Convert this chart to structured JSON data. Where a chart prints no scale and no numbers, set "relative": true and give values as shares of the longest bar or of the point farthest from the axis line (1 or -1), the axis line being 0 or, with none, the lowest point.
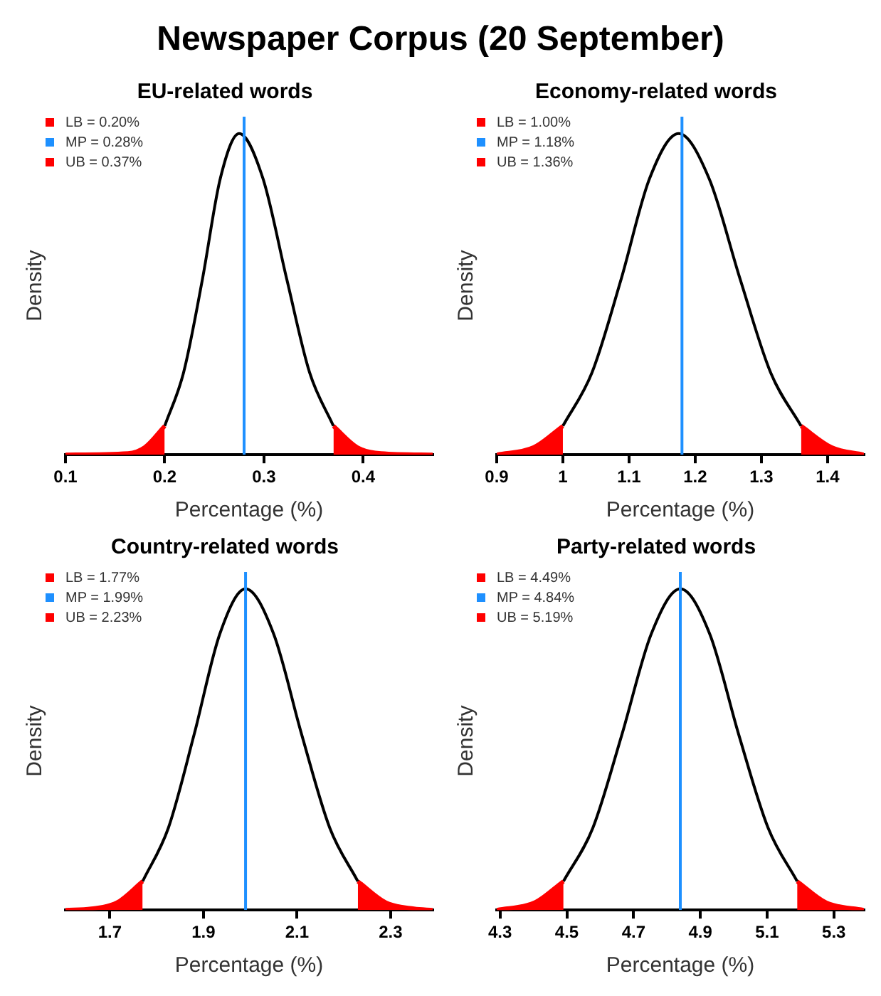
{
  "chart_data": [
    {
      "type": "other",
      "title": "Newspaper Corpus (20 September)"
    },
    {
      "type": "line",
      "title": "EU-related words",
      "xlabel": "Percentage (%)",
      "ylabel": "Density",
      "relative": true,
      "legend": "top left",
      "xlim": [
        0.1,
        0.47
      ],
      "xticks": [
        0.1,
        0.2,
        0.3,
        0.4
      ],
      "series": [
        {
          "name": "LB = 0.20%",
          "type": "area",
          "color": "#ff0000",
          "x": [
            0.1,
            0.163,
            0.18,
            0.2
          ],
          "values": [
            0,
            0.004,
            0.022,
            0.085
          ]
        },
        {
          "name": "MP = 0.28%",
          "type": "line",
          "color": "#1e90ff",
          "x": [
            0.28,
            0.28
          ],
          "values": [
            0,
            1
          ]
        },
        {
          "type": "line",
          "color": "#000000",
          "x": [
            0.2,
            0.219,
            0.238,
            0.256,
            0.275,
            0.299,
            0.323,
            0.346,
            0.37
          ],
          "values": [
            0.085,
            0.243,
            0.519,
            0.817,
            0.95,
            0.817,
            0.519,
            0.243,
            0.085
          ]
        },
        {
          "name": "UB = 0.37%",
          "type": "area",
          "color": "#ff0000",
          "x": [
            0.37,
            0.394,
            0.418,
            0.47
          ],
          "values": [
            0.085,
            0.022,
            0.004,
            0
          ]
        }
      ]
    },
    {
      "type": "line",
      "title": "Economy-related words",
      "xlabel": "Percentage (%)",
      "ylabel": "Density",
      "relative": true,
      "legend": "top left",
      "xlim": [
        0.9,
        1.455
      ],
      "xticks": [
        0.9,
        1,
        1.1,
        1.2,
        1.3,
        1.4
      ],
      "series": [
        {
          "name": "LB = 1.00%",
          "type": "area",
          "color": "#ff0000",
          "x": [
            0.9,
            0.956,
            1.0
          ],
          "values": [
            0,
            0.022,
            0.085
          ]
        },
        {
          "name": "MP = 1.18%",
          "type": "line",
          "color": "#1e90ff",
          "x": [
            1.18,
            1.18
          ],
          "values": [
            0,
            1
          ]
        },
        {
          "type": "line",
          "color": "#000000",
          "x": [
            1.0,
            1.044,
            1.088,
            1.131,
            1.175,
            1.221,
            1.268,
            1.314,
            1.36
          ],
          "values": [
            0.085,
            0.243,
            0.519,
            0.817,
            0.95,
            0.817,
            0.519,
            0.243,
            0.085
          ]
        },
        {
          "name": "UB = 1.36%",
          "type": "area",
          "color": "#ff0000",
          "x": [
            1.36,
            1.406,
            1.455
          ],
          "values": [
            0.085,
            0.022,
            0
          ]
        }
      ]
    },
    {
      "type": "line",
      "title": "Country-related words",
      "xlabel": "Percentage (%)",
      "ylabel": "Density",
      "relative": true,
      "legend": "top left",
      "xlim": [
        1.605,
        2.39
      ],
      "xticks": [
        1.7,
        1.9,
        2.1,
        2.3
      ],
      "series": [
        {
          "name": "LB = 1.77%",
          "type": "area",
          "color": "#ff0000",
          "x": [
            1.605,
            1.66,
            1.715,
            1.77
          ],
          "values": [
            0,
            0.004,
            0.022,
            0.085
          ]
        },
        {
          "name": "MP = 1.99%",
          "type": "line",
          "color": "#1e90ff",
          "x": [
            1.99,
            1.99
          ],
          "values": [
            0,
            1
          ]
        },
        {
          "type": "line",
          "color": "#000000",
          "x": [
            1.77,
            1.825,
            1.88,
            1.935,
            1.99,
            2.05,
            2.11,
            2.17,
            2.23
          ],
          "values": [
            0.085,
            0.243,
            0.519,
            0.817,
            0.95,
            0.817,
            0.519,
            0.243,
            0.085
          ]
        },
        {
          "name": "UB = 2.23%",
          "type": "area",
          "color": "#ff0000",
          "x": [
            2.23,
            2.29,
            2.35,
            2.39
          ],
          "values": [
            0.085,
            0.022,
            0.004,
            0
          ]
        }
      ]
    },
    {
      "type": "line",
      "title": "Party-related words",
      "xlabel": "Percentage (%)",
      "ylabel": "Density",
      "relative": true,
      "legend": "top left",
      "xlim": [
        4.29,
        5.39
      ],
      "xticks": [
        4.3,
        4.5,
        4.7,
        4.9,
        5.1,
        5.3
      ],
      "series": [
        {
          "name": "LB = 4.49%",
          "type": "area",
          "color": "#ff0000",
          "x": [
            4.29,
            4.403,
            4.49
          ],
          "values": [
            0,
            0.022,
            0.085
          ]
        },
        {
          "name": "MP = 4.84%",
          "type": "line",
          "color": "#1e90ff",
          "x": [
            4.84,
            4.84
          ],
          "values": [
            0,
            1
          ]
        },
        {
          "type": "line",
          "color": "#000000",
          "x": [
            4.49,
            4.578,
            4.665,
            4.753,
            4.84,
            4.928,
            5.015,
            5.103,
            5.19
          ],
          "values": [
            0.085,
            0.243,
            0.519,
            0.817,
            0.95,
            0.817,
            0.519,
            0.243,
            0.085
          ]
        },
        {
          "name": "UB = 5.19%",
          "type": "area",
          "color": "#ff0000",
          "x": [
            5.19,
            5.277,
            5.39
          ],
          "values": [
            0.085,
            0.022,
            0
          ]
        }
      ]
    }
  ]
}
